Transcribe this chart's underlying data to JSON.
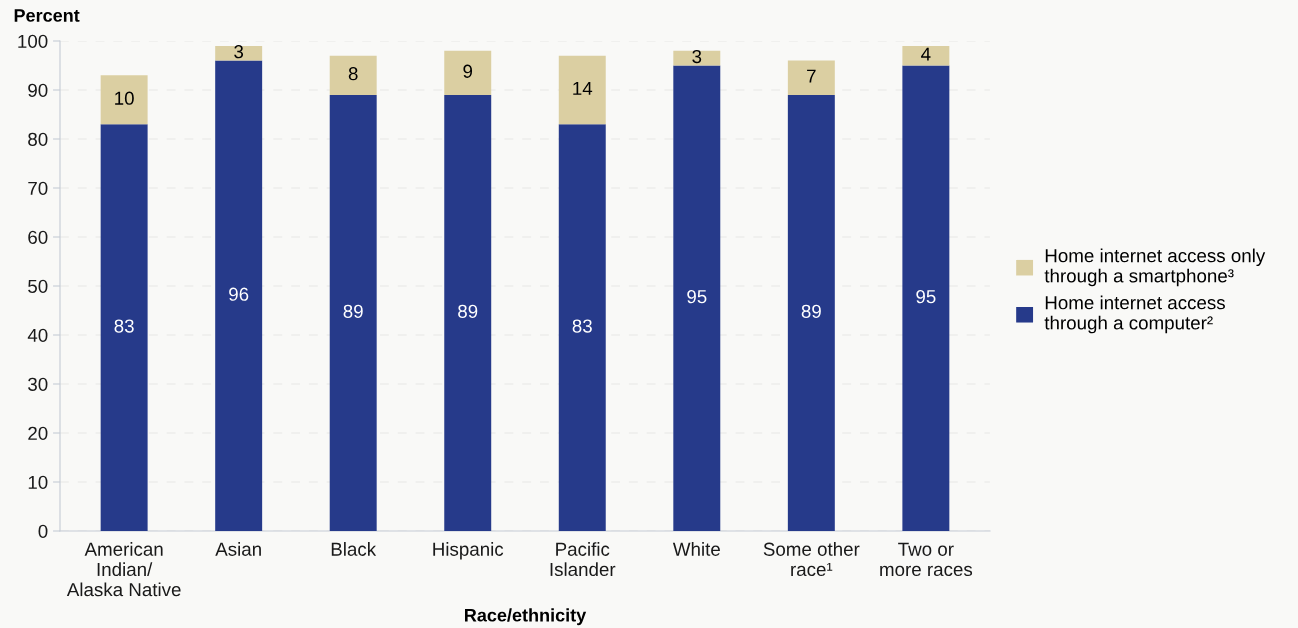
{
  "chart_data": {
    "type": "bar",
    "stacked": true,
    "ylabel": "Percent",
    "xlabel": "Race/ethnicity",
    "categories": [
      "American\nIndian/\nAlaska Native",
      "Asian",
      "Black",
      "Hispanic",
      "Pacific\nIslander",
      "White",
      "Some other\nrace¹",
      "Two or\nmore races"
    ],
    "series": [
      {
        "name": "Home internet access\nthrough a computer²",
        "color": "#263a8a",
        "values": [
          83,
          96,
          89,
          89,
          83,
          95,
          89,
          95
        ]
      },
      {
        "name": "Home internet access only\nthrough a smartphone³",
        "color": "#dbcfa2",
        "values": [
          10,
          3,
          8,
          9,
          14,
          3,
          7,
          4
        ]
      }
    ],
    "ylim": [
      0,
      100
    ],
    "yticks": [
      0,
      10,
      20,
      30,
      40,
      50,
      60,
      70,
      80,
      90,
      100
    ],
    "grid": "y",
    "legend": "right",
    "data_labels": true
  }
}
